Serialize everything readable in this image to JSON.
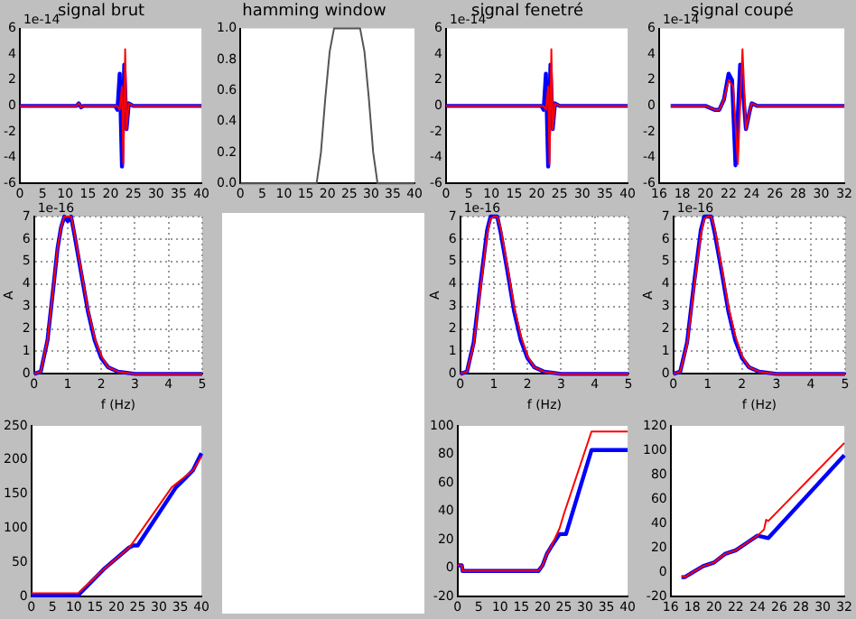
{
  "chart_data": [
    {
      "type": "line",
      "title": "signal brut",
      "annotations": [
        "1e-14"
      ],
      "xlim": [
        0,
        40
      ],
      "xticks": [
        0,
        5,
        10,
        15,
        20,
        25,
        30,
        35,
        40
      ],
      "ylim": [
        -6,
        6
      ],
      "yticks": [
        -6,
        -4,
        -2,
        0,
        2,
        4,
        6
      ],
      "series": [
        {
          "color": "#0000ff",
          "x": [
            0,
            12.5,
            13,
            13.5,
            14,
            21,
            21.5,
            22,
            22.5,
            23,
            23.5,
            24,
            25,
            40
          ],
          "values": [
            0,
            0,
            0.2,
            -0.1,
            0,
            0,
            -0.3,
            2.5,
            -4.7,
            3.2,
            -1.8,
            0.2,
            0,
            0
          ]
        },
        {
          "color": "#ff0000",
          "x": [
            0,
            12.5,
            13,
            13.5,
            14,
            21.5,
            22,
            22.5,
            22.8,
            23.2,
            23.5,
            24,
            25,
            40
          ],
          "values": [
            0,
            0,
            0.2,
            -0.1,
            0,
            0,
            -0.3,
            1.5,
            -4.5,
            4.4,
            -1.8,
            0.2,
            0,
            0
          ]
        }
      ]
    },
    {
      "type": "line",
      "title": "hamming window",
      "xlim": [
        0,
        40
      ],
      "xticks": [
        0,
        5,
        10,
        15,
        20,
        25,
        30,
        35,
        40
      ],
      "ylim": [
        0,
        1
      ],
      "yticks": [
        {
          "value": 0,
          "label": "0.0"
        },
        {
          "value": 0.2,
          "label": "0.2"
        },
        {
          "value": 0.4,
          "label": "0.4"
        },
        {
          "value": 0.6,
          "label": "0.6"
        },
        {
          "value": 0.8,
          "label": "0.8"
        },
        {
          "value": 1,
          "label": "1.0"
        }
      ],
      "series": [
        {
          "color": "#555555",
          "x": [
            0,
            17.5,
            18.5,
            19.5,
            20.5,
            21.5,
            27.5,
            28.5,
            29.5,
            30.5,
            31.5,
            40
          ],
          "values": [
            0,
            0,
            0.2,
            0.55,
            0.85,
            1,
            1,
            0.85,
            0.55,
            0.2,
            0,
            0
          ]
        }
      ]
    },
    {
      "type": "line",
      "title": "signal fenetré",
      "annotations": [
        "1e-14"
      ],
      "xlim": [
        0,
        40
      ],
      "xticks": [
        0,
        5,
        10,
        15,
        20,
        25,
        30,
        35,
        40
      ],
      "ylim": [
        -6,
        6
      ],
      "yticks": [
        -6,
        -4,
        -2,
        0,
        2,
        4,
        6
      ],
      "series": [
        {
          "color": "#0000ff",
          "x": [
            0,
            21,
            21.5,
            22,
            22.5,
            23,
            23.5,
            24,
            25,
            40
          ],
          "values": [
            0,
            0,
            -0.3,
            2.5,
            -4.7,
            3.2,
            -1.8,
            0.2,
            0,
            0
          ]
        },
        {
          "color": "#ff0000",
          "x": [
            0,
            21.5,
            22,
            22.5,
            22.8,
            23.2,
            23.5,
            24,
            25,
            40
          ],
          "values": [
            0,
            0,
            -0.3,
            1.5,
            -4.5,
            4.4,
            -1.8,
            0.2,
            0,
            0
          ]
        }
      ]
    },
    {
      "type": "line",
      "title": "signal coupé",
      "annotations": [
        "1e-14"
      ],
      "xlim": [
        16,
        32
      ],
      "xticks": [
        16,
        18,
        20,
        22,
        24,
        26,
        28,
        30,
        32
      ],
      "ylim": [
        -6,
        6
      ],
      "yticks": [
        -6,
        -4,
        -2,
        0,
        2,
        4,
        6
      ],
      "series": [
        {
          "color": "#0000ff",
          "x": [
            17,
            20,
            20.8,
            21.2,
            21.6,
            22,
            22.3,
            22.6,
            23,
            23.3,
            23.5,
            23.8,
            24,
            24.5,
            32
          ],
          "values": [
            0,
            0,
            -0.3,
            -0.3,
            0.5,
            2.5,
            2,
            -4.6,
            3.2,
            0.5,
            -1.8,
            -0.5,
            0.2,
            0,
            0
          ]
        },
        {
          "color": "#ff0000",
          "x": [
            17,
            20,
            20.8,
            21.2,
            21.6,
            22,
            22.4,
            22.8,
            23.2,
            23.5,
            23.8,
            24,
            24.5,
            32
          ],
          "values": [
            0,
            0,
            -0.3,
            -0.3,
            0.5,
            2,
            1.5,
            -4.5,
            4.4,
            -1.8,
            -0.5,
            0.2,
            0,
            0
          ]
        }
      ]
    },
    {
      "type": "line",
      "annotations": [
        "1e-16"
      ],
      "xlabel": "f (Hz)",
      "ylabel": "A",
      "xlim": [
        0,
        5
      ],
      "xticks": [
        0,
        1,
        2,
        3,
        4,
        5
      ],
      "ylim": [
        0,
        7
      ],
      "yticks": [
        0,
        1,
        2,
        3,
        4,
        5,
        6,
        7
      ],
      "grid": true,
      "series": [
        {
          "color": "#0000ff",
          "x": [
            0,
            0.2,
            0.4,
            0.6,
            0.7,
            0.8,
            0.9,
            1,
            1.1,
            1.2,
            1.4,
            1.6,
            1.8,
            2,
            2.2,
            2.5,
            3,
            5
          ],
          "values": [
            0,
            0.1,
            1.5,
            4.2,
            5.6,
            6.5,
            7,
            6.8,
            7,
            6.2,
            4.5,
            2.8,
            1.5,
            0.7,
            0.3,
            0.1,
            0,
            0
          ]
        },
        {
          "color": "#ff0000",
          "x": [
            0,
            0.2,
            0.4,
            0.6,
            0.7,
            0.8,
            0.9,
            1,
            1.1,
            1.2,
            1.4,
            1.6,
            1.8,
            2,
            2.2,
            2.5,
            3,
            5
          ],
          "values": [
            0,
            0.1,
            1.5,
            4.2,
            5.6,
            6.5,
            7,
            7,
            7,
            6.3,
            4.6,
            2.9,
            1.6,
            0.8,
            0.3,
            0.1,
            0,
            0
          ]
        }
      ]
    },
    {
      "type": "line",
      "annotations": [
        "1e-16"
      ],
      "xlabel": "f (Hz)",
      "ylabel": "A",
      "xlim": [
        0,
        5
      ],
      "xticks": [
        0,
        1,
        2,
        3,
        4,
        5
      ],
      "ylim": [
        0,
        7
      ],
      "yticks": [
        0,
        1,
        2,
        3,
        4,
        5,
        6,
        7
      ],
      "grid": true,
      "series": [
        {
          "color": "#0000ff",
          "x": [
            0,
            0.2,
            0.4,
            0.6,
            0.8,
            0.9,
            1,
            1.1,
            1.2,
            1.4,
            1.6,
            1.8,
            2,
            2.2,
            2.5,
            3,
            5
          ],
          "values": [
            0,
            0.1,
            1.4,
            4,
            6.4,
            7,
            7,
            7,
            6.3,
            4.6,
            2.8,
            1.5,
            0.7,
            0.3,
            0.1,
            0,
            0
          ]
        },
        {
          "color": "#ff0000",
          "x": [
            0,
            0.2,
            0.4,
            0.6,
            0.8,
            0.9,
            1,
            1.1,
            1.2,
            1.4,
            1.6,
            1.8,
            2,
            2.2,
            2.5,
            3,
            5
          ],
          "values": [
            0,
            0.1,
            1.3,
            3.8,
            6.2,
            6.9,
            7,
            7,
            6.5,
            4.8,
            3,
            1.7,
            0.8,
            0.3,
            0.1,
            0,
            0
          ]
        }
      ]
    },
    {
      "type": "line",
      "annotations": [
        "1e-16"
      ],
      "xlabel": "f (Hz)",
      "ylabel": "A",
      "xlim": [
        0,
        5
      ],
      "xticks": [
        0,
        1,
        2,
        3,
        4,
        5
      ],
      "ylim": [
        0,
        7
      ],
      "yticks": [
        0,
        1,
        2,
        3,
        4,
        5,
        6,
        7
      ],
      "grid": true,
      "series": [
        {
          "color": "#0000ff",
          "x": [
            0,
            0.2,
            0.4,
            0.6,
            0.8,
            0.9,
            1,
            1.1,
            1.2,
            1.4,
            1.6,
            1.8,
            2,
            2.2,
            2.5,
            3,
            5
          ],
          "values": [
            0,
            0.1,
            1.4,
            4,
            6.4,
            7,
            7,
            7,
            6.3,
            4.6,
            2.8,
            1.5,
            0.7,
            0.3,
            0.1,
            0,
            0
          ]
        },
        {
          "color": "#ff0000",
          "x": [
            0,
            0.2,
            0.4,
            0.6,
            0.8,
            0.9,
            1,
            1.1,
            1.2,
            1.4,
            1.6,
            1.8,
            2,
            2.2,
            2.5,
            3,
            5
          ],
          "values": [
            0,
            0.1,
            1.3,
            3.8,
            6.2,
            6.9,
            7,
            7,
            6.5,
            4.8,
            3,
            1.7,
            0.8,
            0.3,
            0.1,
            0,
            0
          ]
        }
      ]
    },
    {
      "type": "line",
      "xlim": [
        0,
        40
      ],
      "xticks": [
        0,
        5,
        10,
        15,
        20,
        25,
        30,
        35,
        40
      ],
      "ylim": [
        0,
        250
      ],
      "yticks": [
        0,
        50,
        100,
        150,
        200,
        250
      ],
      "series": [
        {
          "color": "#0000ff",
          "x": [
            0,
            11,
            17,
            23,
            24,
            25,
            34,
            36,
            38,
            40
          ],
          "values": [
            2,
            2,
            40,
            72,
            75,
            75,
            160,
            172,
            185,
            210
          ]
        },
        {
          "color": "#ff0000",
          "x": [
            0,
            11,
            17,
            23,
            24,
            33,
            35,
            38,
            40
          ],
          "values": [
            5,
            5,
            40,
            72,
            80,
            160,
            170,
            185,
            205
          ]
        }
      ]
    },
    {
      "type": "line",
      "xlim": [
        0,
        40
      ],
      "xticks": [
        0,
        5,
        10,
        15,
        20,
        25,
        30,
        35,
        40
      ],
      "ylim": [
        -20,
        100
      ],
      "yticks": [
        -20,
        0,
        20,
        40,
        60,
        80,
        100
      ],
      "series": [
        {
          "color": "#0000ff",
          "x": [
            0,
            1,
            1.2,
            19,
            20,
            21,
            22,
            24,
            25.5,
            31.5,
            40
          ],
          "values": [
            2,
            2,
            -2,
            -2,
            2,
            10,
            15,
            24,
            24,
            83,
            83
          ]
        },
        {
          "color": "#ff0000",
          "x": [
            0,
            1,
            1.2,
            19,
            20,
            21,
            22,
            24,
            25,
            31.5,
            40
          ],
          "values": [
            2,
            2,
            -2,
            -2,
            2,
            10,
            15,
            28,
            38,
            96,
            96
          ]
        }
      ]
    },
    {
      "type": "line",
      "xlim": [
        16,
        32
      ],
      "xticks": [
        16,
        18,
        20,
        22,
        24,
        26,
        28,
        30,
        32
      ],
      "ylim": [
        -20,
        120
      ],
      "yticks": [
        -20,
        0,
        20,
        40,
        60,
        80,
        100,
        120
      ],
      "series": [
        {
          "color": "#0000ff",
          "x": [
            17,
            17.3,
            19,
            20,
            21,
            22,
            23,
            24,
            25,
            32
          ],
          "values": [
            -4,
            -4,
            5,
            8,
            15,
            18,
            24,
            30,
            28,
            96
          ]
        },
        {
          "color": "#ff0000",
          "x": [
            17,
            17.3,
            19,
            20,
            21,
            22,
            23,
            24,
            24.6,
            24.8,
            25,
            32
          ],
          "values": [
            -3,
            -4,
            5,
            8,
            15,
            18,
            24,
            30,
            35,
            43,
            42,
            106
          ]
        }
      ]
    }
  ]
}
